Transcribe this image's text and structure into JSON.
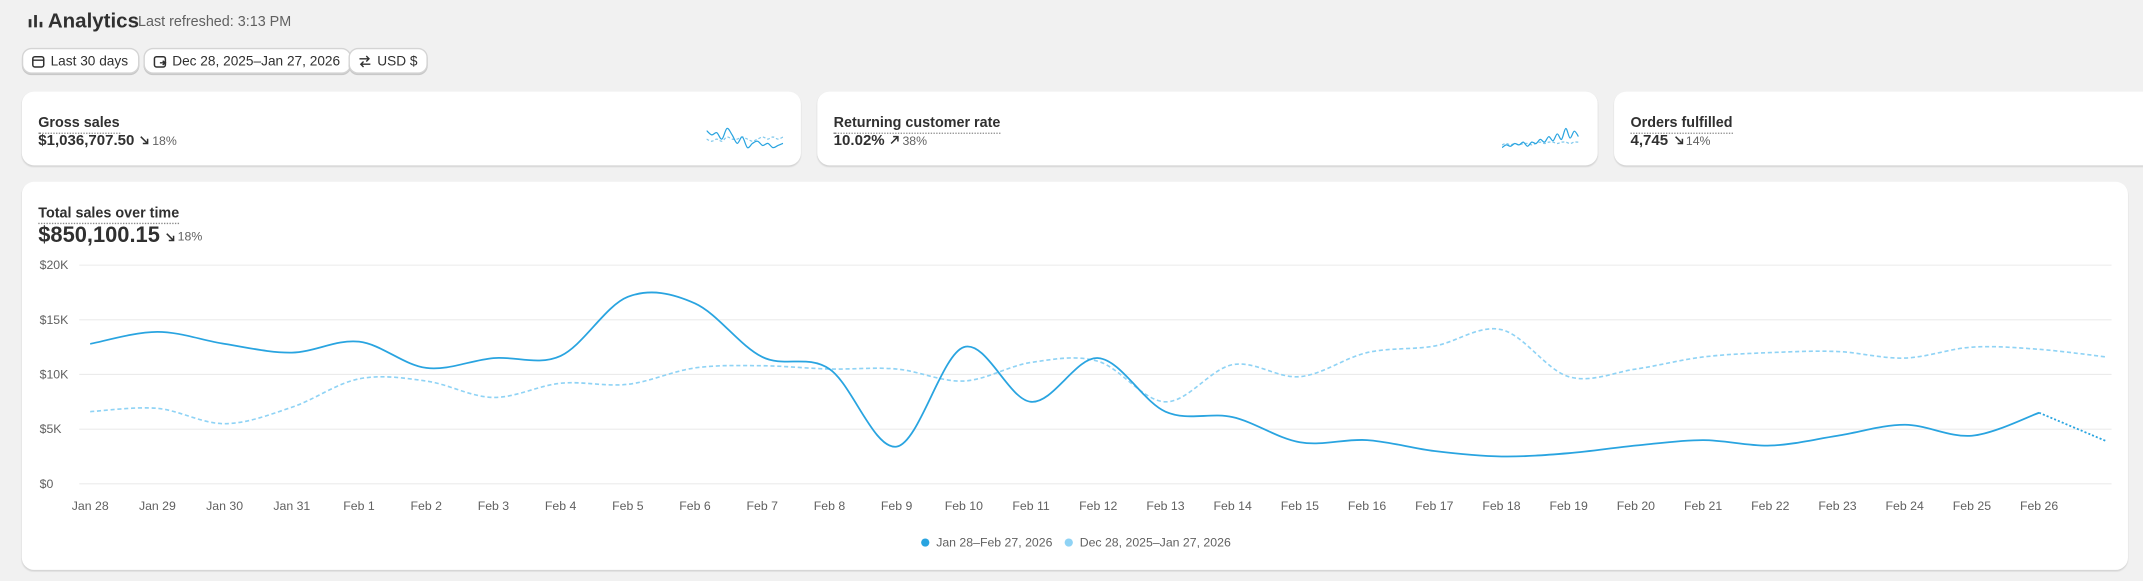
{
  "header": {
    "title": "Analytics",
    "subtitle": "Last refreshed: 3:13 PM"
  },
  "filters": [
    {
      "label": "Last 30 days"
    },
    {
      "label": "Dec 28, 2025–Jan 27, 2026"
    },
    {
      "label": "USD $"
    }
  ],
  "cards": [
    {
      "title": "Gross sales",
      "value": "$1,036,707.50",
      "change": "18%",
      "trend": "down",
      "sparkline": {
        "color": "#29a4e0",
        "current": [
          9,
          8,
          8.5,
          7,
          9.5,
          8,
          6,
          7.5,
          5,
          6,
          6.5,
          5.5,
          6,
          5,
          5.5,
          6
        ],
        "previous": [
          7,
          6.5,
          7,
          6.5,
          7.5,
          7,
          7,
          7.5,
          7,
          6.5,
          7,
          7.5,
          7,
          7.5,
          7,
          7.5
        ]
      }
    },
    {
      "title": "Returning customer rate",
      "value": "10.02%",
      "change": "38%",
      "trend": "up",
      "sparkline": {
        "color": "#29a4e0",
        "current": [
          3,
          4,
          3.5,
          4.5,
          4,
          5,
          3.5,
          5,
          4.5,
          6,
          5,
          7,
          5.5,
          8,
          6,
          10,
          6.5,
          9,
          7
        ],
        "previous": [
          4,
          4.5,
          4,
          4.5,
          4,
          4.5,
          4.5,
          4,
          4.5,
          5,
          4.5,
          5,
          5,
          4.5,
          5,
          5,
          4.5,
          5,
          5
        ]
      }
    },
    {
      "title": "Orders fulfilled",
      "value": "4,745",
      "change": "14%",
      "trend": "down"
    }
  ],
  "chart": {
    "type": "line",
    "title": "Total sales over time",
    "total": "$850,100.15",
    "change": "18%",
    "trend": "down",
    "categories": [
      "Jan 28",
      "Jan 29",
      "Jan 30",
      "Jan 31",
      "Feb 1",
      "Feb 2",
      "Feb 3",
      "Feb 4",
      "Feb 5",
      "Feb 6",
      "Feb 7",
      "Feb 8",
      "Feb 9",
      "Feb 10",
      "Feb 11",
      "Feb 12",
      "Feb 13",
      "Feb 14",
      "Feb 15",
      "Feb 16",
      "Feb 17",
      "Feb 18",
      "Feb 19",
      "Feb 20",
      "Feb 21",
      "Feb 22",
      "Feb 23",
      "Feb 24",
      "Feb 25",
      "Feb 26",
      null
    ],
    "series": [
      {
        "name": "Jan 28–Feb 27, 2026",
        "color": "#29a4e0",
        "style": "solid",
        "values": [
          12800,
          13900,
          12800,
          12000,
          13000,
          10600,
          11500,
          11700,
          17100,
          16500,
          11600,
          10500,
          3400,
          12500,
          7500,
          11500,
          6600,
          6100,
          3800,
          4000,
          3000,
          2500,
          2800,
          3500,
          4000,
          3500,
          4400,
          5400,
          4400,
          6500,
          3900
        ]
      },
      {
        "name": "Dec 28, 2025–Jan 27, 2026",
        "color": "#8fd3f5",
        "style": "dashed",
        "values": [
          6600,
          6900,
          5500,
          7000,
          9600,
          9400,
          7900,
          9200,
          9100,
          10600,
          10800,
          10500,
          10500,
          9400,
          11100,
          11200,
          7500,
          10900,
          9800,
          12000,
          12600,
          14100,
          9800,
          10500,
          11600,
          12000,
          12100,
          11500,
          12500,
          12300,
          11600
        ]
      }
    ],
    "ylim": [
      0,
      20000
    ],
    "yticks": [
      {
        "value": 0,
        "label": "$0"
      },
      {
        "value": 5000,
        "label": "$5K"
      },
      {
        "value": 10000,
        "label": "$10K"
      },
      {
        "value": 15000,
        "label": "$15K"
      },
      {
        "value": 20000,
        "label": "$20K"
      }
    ],
    "grid": true
  }
}
